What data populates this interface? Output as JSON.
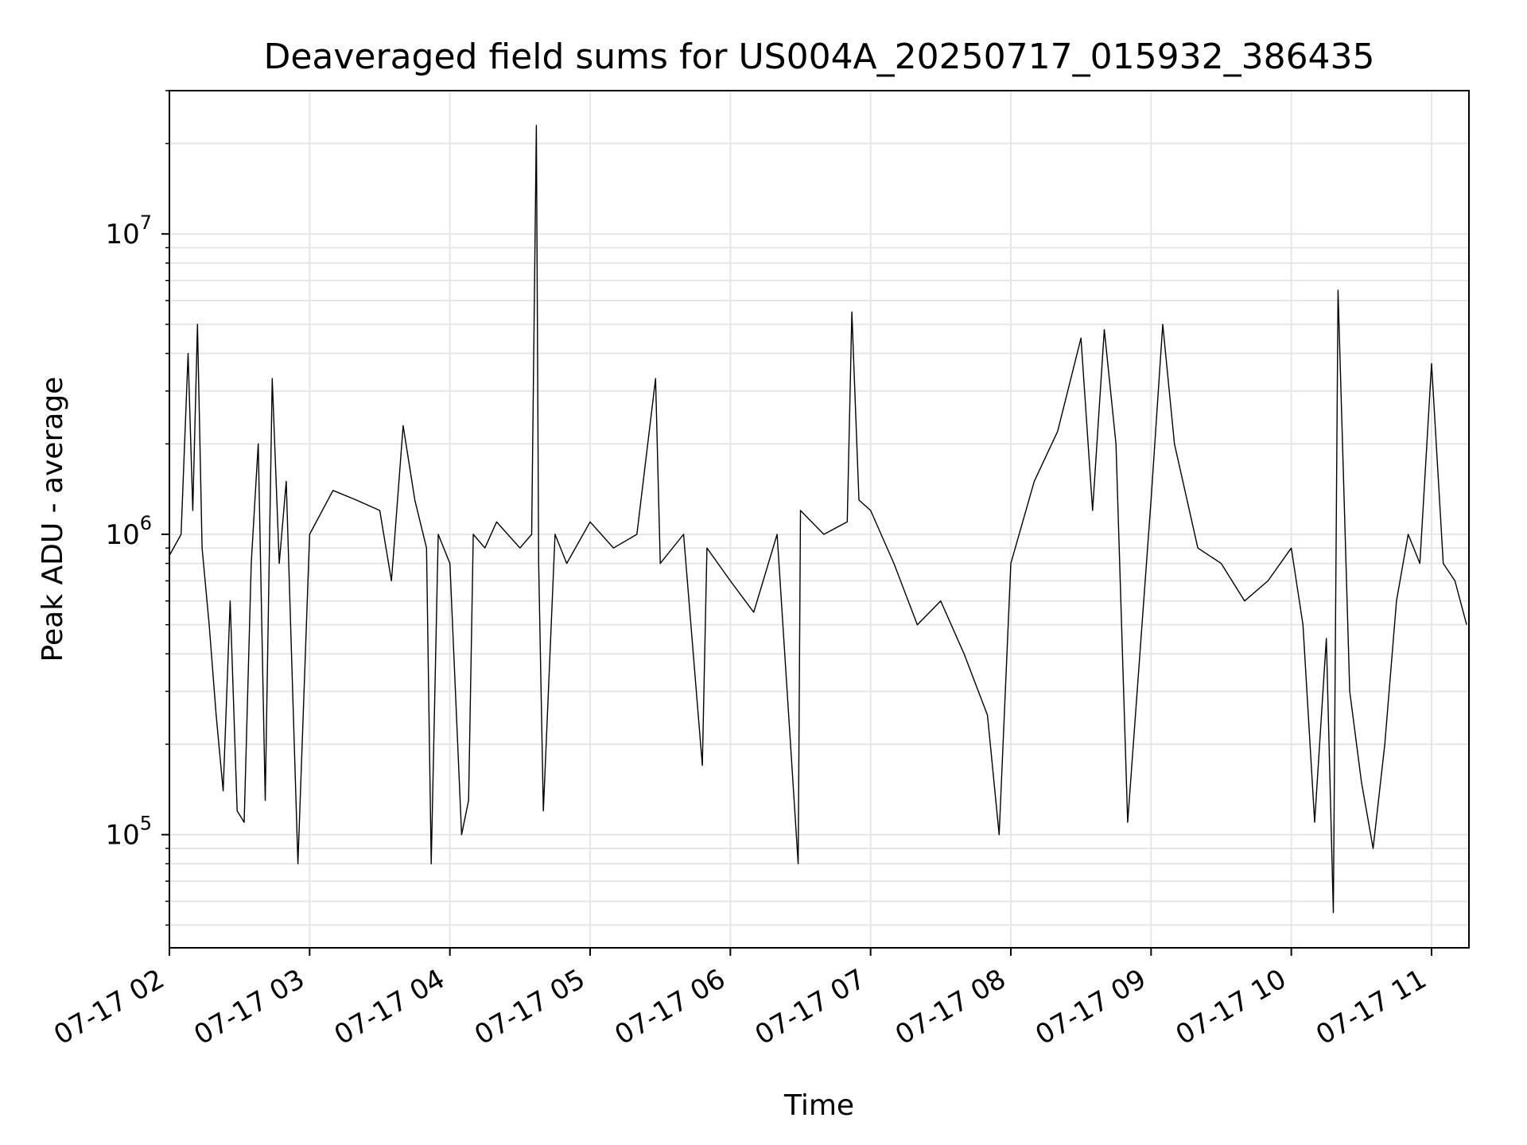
{
  "chart_data": {
    "type": "line",
    "title": "Deaveraged field sums for US004A_20250717_015932_386435",
    "xlabel": "Time",
    "ylabel": "Peak ADU - average",
    "yscale": "log",
    "grid": true,
    "line_color": "#000000",
    "grid_color": "#e6e6e6",
    "xlim": [
      "2025-07-17 02:00",
      "2025-07-17 11:16"
    ],
    "ylim": [
      42000,
      30000000
    ],
    "x_ticks": [
      {
        "value": "2025-07-17 02:00",
        "label": "07-17 02"
      },
      {
        "value": "2025-07-17 03:00",
        "label": "07-17 03"
      },
      {
        "value": "2025-07-17 04:00",
        "label": "07-17 04"
      },
      {
        "value": "2025-07-17 05:00",
        "label": "07-17 05"
      },
      {
        "value": "2025-07-17 06:00",
        "label": "07-17 06"
      },
      {
        "value": "2025-07-17 07:00",
        "label": "07-17 07"
      },
      {
        "value": "2025-07-17 08:00",
        "label": "07-17 08"
      },
      {
        "value": "2025-07-17 09:00",
        "label": "07-17 09"
      },
      {
        "value": "2025-07-17 10:00",
        "label": "07-17 10"
      },
      {
        "value": "2025-07-17 11:00",
        "label": "07-17 11"
      }
    ],
    "y_ticks": [
      {
        "value": 100000,
        "base": "10",
        "exponent": "5"
      },
      {
        "value": 1000000,
        "base": "10",
        "exponent": "6"
      },
      {
        "value": 10000000,
        "base": "10",
        "exponent": "7"
      }
    ],
    "series": [
      {
        "x": [
          "2025-07-17 02:00",
          "2025-07-17 02:05",
          "2025-07-17 02:08",
          "2025-07-17 02:10",
          "2025-07-17 02:12",
          "2025-07-17 02:14",
          "2025-07-17 02:17",
          "2025-07-17 02:20",
          "2025-07-17 02:23",
          "2025-07-17 02:26",
          "2025-07-17 02:29",
          "2025-07-17 02:32",
          "2025-07-17 02:35",
          "2025-07-17 02:38",
          "2025-07-17 02:41",
          "2025-07-17 02:44",
          "2025-07-17 02:47",
          "2025-07-17 02:50",
          "2025-07-17 02:55",
          "2025-07-17 03:00",
          "2025-07-17 03:10",
          "2025-07-17 03:20",
          "2025-07-17 03:30",
          "2025-07-17 03:35",
          "2025-07-17 03:40",
          "2025-07-17 03:45",
          "2025-07-17 03:50",
          "2025-07-17 03:52",
          "2025-07-17 03:55",
          "2025-07-17 04:00",
          "2025-07-17 04:05",
          "2025-07-17 04:08",
          "2025-07-17 04:10",
          "2025-07-17 04:15",
          "2025-07-17 04:20",
          "2025-07-17 04:30",
          "2025-07-17 04:35",
          "2025-07-17 04:37",
          "2025-07-17 04:38",
          "2025-07-17 04:40",
          "2025-07-17 04:45",
          "2025-07-17 04:50",
          "2025-07-17 05:00",
          "2025-07-17 05:10",
          "2025-07-17 05:20",
          "2025-07-17 05:28",
          "2025-07-17 05:30",
          "2025-07-17 05:40",
          "2025-07-17 05:48",
          "2025-07-17 05:50",
          "2025-07-17 06:00",
          "2025-07-17 06:10",
          "2025-07-17 06:20",
          "2025-07-17 06:29",
          "2025-07-17 06:30",
          "2025-07-17 06:40",
          "2025-07-17 06:50",
          "2025-07-17 06:52",
          "2025-07-17 06:55",
          "2025-07-17 07:00",
          "2025-07-17 07:10",
          "2025-07-17 07:20",
          "2025-07-17 07:30",
          "2025-07-17 07:40",
          "2025-07-17 07:50",
          "2025-07-17 07:55",
          "2025-07-17 08:00",
          "2025-07-17 08:10",
          "2025-07-17 08:20",
          "2025-07-17 08:30",
          "2025-07-17 08:35",
          "2025-07-17 08:40",
          "2025-07-17 08:45",
          "2025-07-17 08:50",
          "2025-07-17 09:00",
          "2025-07-17 09:05",
          "2025-07-17 09:10",
          "2025-07-17 09:20",
          "2025-07-17 09:30",
          "2025-07-17 09:40",
          "2025-07-17 09:50",
          "2025-07-17 10:00",
          "2025-07-17 10:05",
          "2025-07-17 10:10",
          "2025-07-17 10:15",
          "2025-07-17 10:18",
          "2025-07-17 10:20",
          "2025-07-17 10:25",
          "2025-07-17 10:30",
          "2025-07-17 10:35",
          "2025-07-17 10:40",
          "2025-07-17 10:45",
          "2025-07-17 10:50",
          "2025-07-17 10:55",
          "2025-07-17 11:00",
          "2025-07-17 11:05",
          "2025-07-17 11:10",
          "2025-07-17 11:15"
        ],
        "values": [
          850000,
          1000000,
          4000000,
          1200000,
          5000000,
          900000,
          500000,
          250000,
          140000,
          600000,
          120000,
          110000,
          800000,
          2000000,
          130000,
          3300000,
          800000,
          1500000,
          80000,
          1000000,
          1400000,
          1300000,
          1200000,
          700000,
          2300000,
          1300000,
          900000,
          80000,
          1000000,
          800000,
          100000,
          130000,
          1000000,
          900000,
          1100000,
          900000,
          1000000,
          23000000,
          800000,
          120000,
          1000000,
          800000,
          1100000,
          900000,
          1000000,
          3300000,
          800000,
          1000000,
          170000,
          900000,
          700000,
          550000,
          1000000,
          80000,
          1200000,
          1000000,
          1100000,
          5500000,
          1300000,
          1200000,
          800000,
          500000,
          600000,
          400000,
          250000,
          100000,
          800000,
          1500000,
          2200000,
          4500000,
          1200000,
          4800000,
          2000000,
          110000,
          1300000,
          5000000,
          2000000,
          900000,
          800000,
          600000,
          700000,
          900000,
          500000,
          110000,
          450000,
          55000,
          6500000,
          300000,
          150000,
          90000,
          200000,
          600000,
          1000000,
          800000,
          3700000,
          800000,
          700000,
          500000
        ]
      }
    ]
  }
}
